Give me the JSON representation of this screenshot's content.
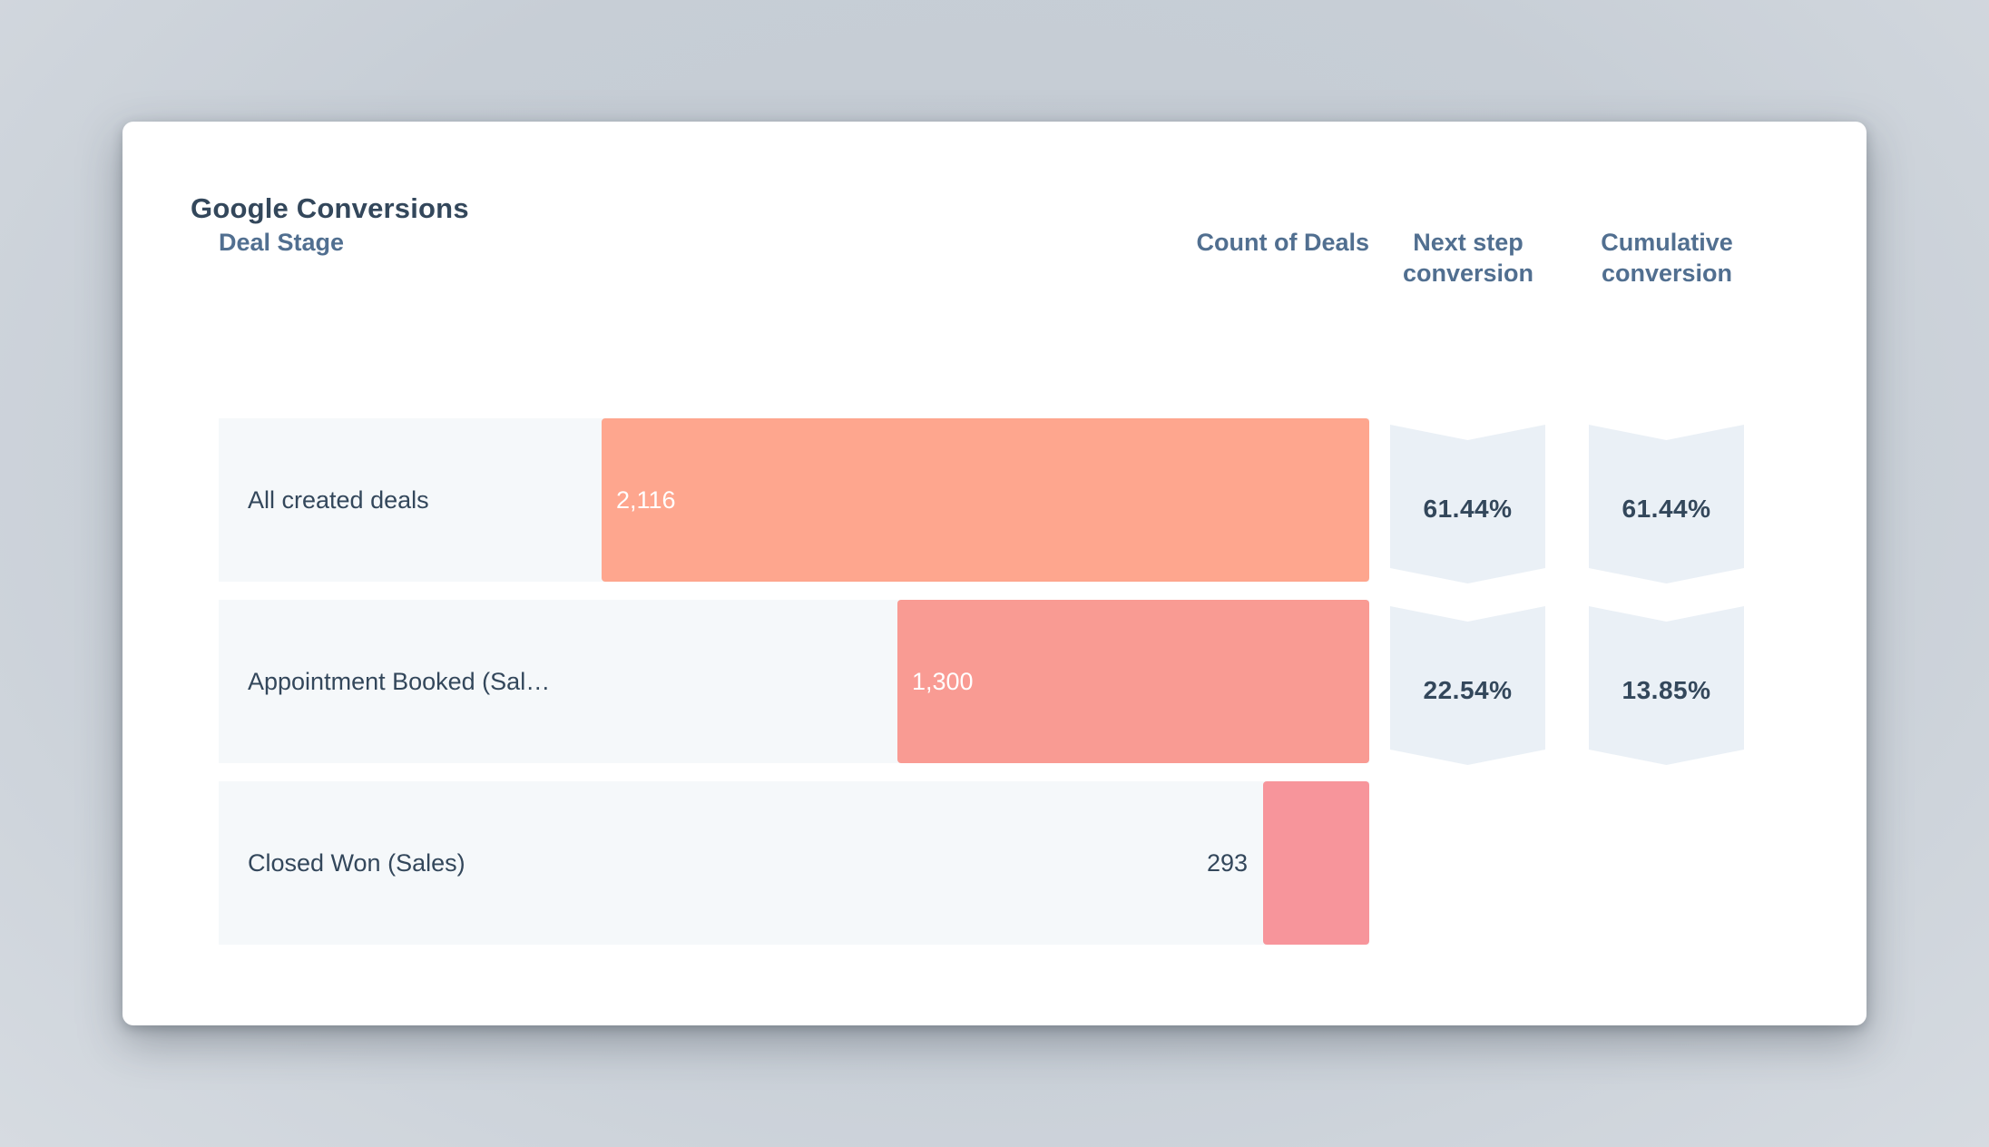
{
  "colors": {
    "title": "#33475b",
    "header": "#516f90",
    "row_background": "#f5f8fa",
    "chevron": "#eaf0f6",
    "bars": [
      "#fea68e",
      "#f99b93",
      "#f7959b"
    ]
  },
  "chart_data": {
    "type": "funnel",
    "title": "Google Conversions",
    "column_headers": {
      "stage": "Deal Stage",
      "count": "Count of Deals",
      "next_step": "Next step conversion",
      "cumulative": "Cumulative conversion"
    },
    "stages": [
      {
        "label": "All created deals",
        "value": 2116,
        "display": "2,116"
      },
      {
        "label": "Appointment Booked (Sal…",
        "value": 1300,
        "display": "1,300"
      },
      {
        "label": "Closed Won (Sales)",
        "value": 293,
        "display": "293"
      }
    ],
    "next_step_conversion": [
      "61.44%",
      "22.54%"
    ],
    "cumulative_conversion": [
      "61.44%",
      "13.85%"
    ]
  }
}
